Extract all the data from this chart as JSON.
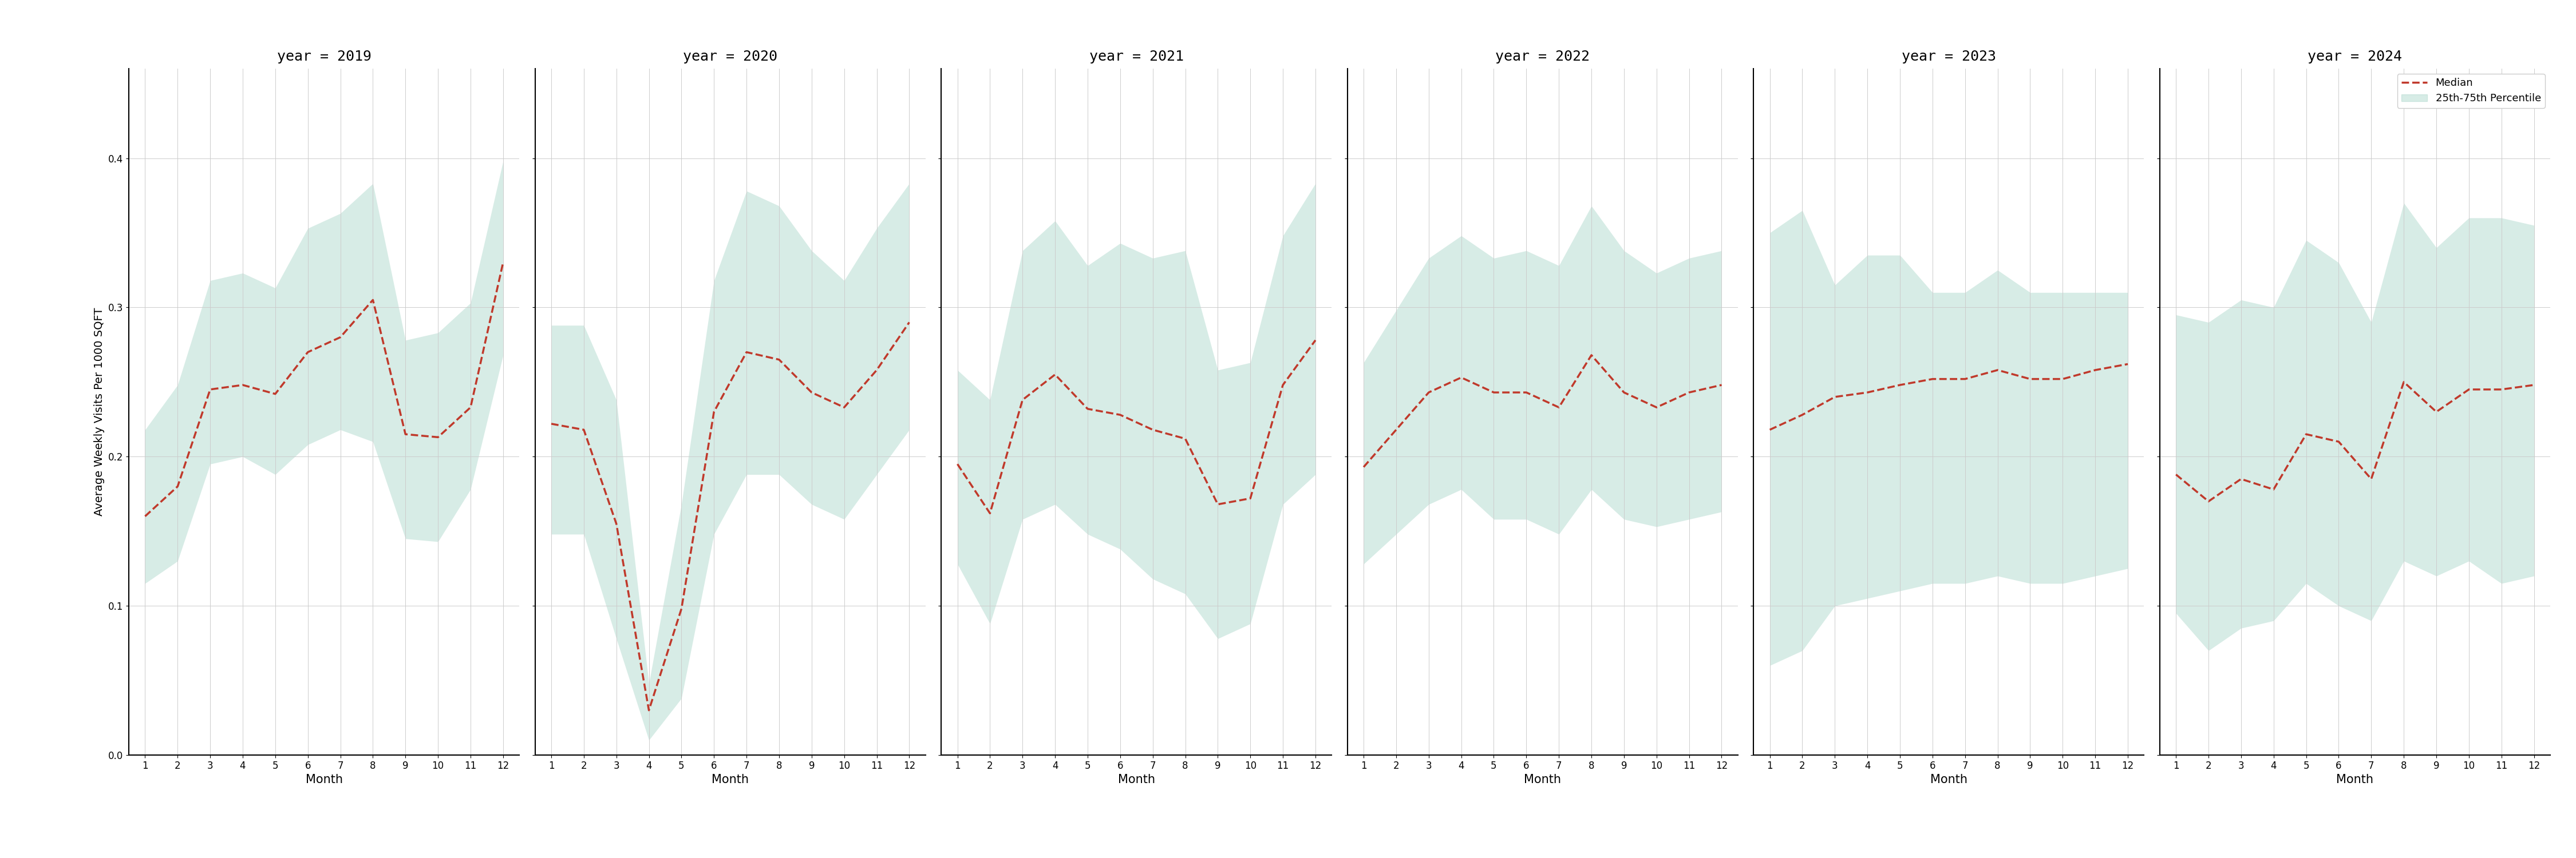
{
  "years": [
    2019,
    2020,
    2021,
    2022,
    2023,
    2024
  ],
  "months": [
    1,
    2,
    3,
    4,
    5,
    6,
    7,
    8,
    9,
    10,
    11,
    12
  ],
  "median": {
    "2019": [
      0.16,
      0.18,
      0.245,
      0.248,
      0.242,
      0.27,
      0.28,
      0.305,
      0.215,
      0.213,
      0.233,
      0.33
    ],
    "2020": [
      0.222,
      0.218,
      0.155,
      0.03,
      0.098,
      0.23,
      0.27,
      0.265,
      0.243,
      0.233,
      0.258,
      0.29
    ],
    "2021": [
      0.195,
      0.162,
      0.238,
      0.255,
      0.232,
      0.228,
      0.218,
      0.212,
      0.168,
      0.172,
      0.248,
      0.278
    ],
    "2022": [
      0.193,
      0.218,
      0.243,
      0.253,
      0.243,
      0.243,
      0.233,
      0.268,
      0.243,
      0.233,
      0.243,
      0.248
    ],
    "2023": [
      0.218,
      0.228,
      0.24,
      0.243,
      0.248,
      0.252,
      0.252,
      0.258,
      0.252,
      0.252,
      0.258,
      0.262
    ],
    "2024": [
      0.188,
      0.17,
      0.185,
      0.178,
      0.215,
      0.21,
      0.185,
      0.25,
      0.23,
      0.245,
      0.245,
      0.248
    ]
  },
  "q25": {
    "2019": [
      0.115,
      0.13,
      0.195,
      0.2,
      0.188,
      0.208,
      0.218,
      0.21,
      0.145,
      0.143,
      0.178,
      0.268
    ],
    "2020": [
      0.148,
      0.148,
      0.078,
      0.01,
      0.038,
      0.148,
      0.188,
      0.188,
      0.168,
      0.158,
      0.188,
      0.218
    ],
    "2021": [
      0.128,
      0.088,
      0.158,
      0.168,
      0.148,
      0.138,
      0.118,
      0.108,
      0.078,
      0.088,
      0.168,
      0.188
    ],
    "2022": [
      0.128,
      0.148,
      0.168,
      0.178,
      0.158,
      0.158,
      0.148,
      0.178,
      0.158,
      0.153,
      0.158,
      0.163
    ],
    "2023": [
      0.06,
      0.07,
      0.1,
      0.105,
      0.11,
      0.115,
      0.115,
      0.12,
      0.115,
      0.115,
      0.12,
      0.125
    ],
    "2024": [
      0.095,
      0.07,
      0.085,
      0.09,
      0.115,
      0.1,
      0.09,
      0.13,
      0.12,
      0.13,
      0.115,
      0.12
    ]
  },
  "q75": {
    "2019": [
      0.218,
      0.248,
      0.318,
      0.323,
      0.313,
      0.353,
      0.363,
      0.383,
      0.278,
      0.283,
      0.303,
      0.398
    ],
    "2020": [
      0.288,
      0.288,
      0.238,
      0.048,
      0.168,
      0.318,
      0.378,
      0.368,
      0.338,
      0.318,
      0.353,
      0.383
    ],
    "2021": [
      0.258,
      0.238,
      0.338,
      0.358,
      0.328,
      0.343,
      0.333,
      0.338,
      0.258,
      0.263,
      0.348,
      0.383
    ],
    "2022": [
      0.263,
      0.298,
      0.333,
      0.348,
      0.333,
      0.338,
      0.328,
      0.368,
      0.338,
      0.323,
      0.333,
      0.338
    ],
    "2023": [
      0.35,
      0.365,
      0.315,
      0.335,
      0.335,
      0.31,
      0.31,
      0.325,
      0.31,
      0.31,
      0.31,
      0.31
    ],
    "2024": [
      0.295,
      0.29,
      0.305,
      0.3,
      0.345,
      0.33,
      0.29,
      0.37,
      0.34,
      0.36,
      0.36,
      0.355
    ]
  },
  "ylim": [
    0.0,
    0.46
  ],
  "yticks": [
    0.0,
    0.1,
    0.2,
    0.3,
    0.4
  ],
  "ylabel": "Average Weekly Visits Per 1000 SQFT",
  "xlabel": "Month",
  "median_color": "#c0392b",
  "fill_color": "#a8d5c8",
  "fill_alpha": 0.45,
  "line_style": "--",
  "line_width": 2.5,
  "title_prefix": "year = ",
  "legend_median_label": "Median",
  "legend_fill_label": "25th-75th Percentile",
  "background_color": "#ffffff",
  "grid_color": "#cccccc"
}
